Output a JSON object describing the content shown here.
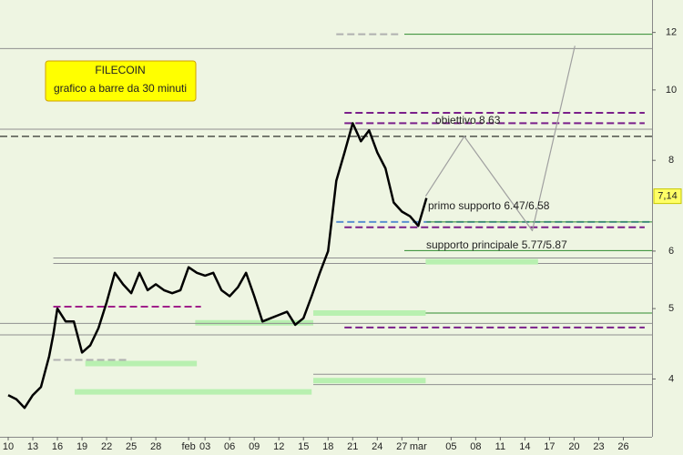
{
  "chart_data": {
    "type": "line",
    "title": "FILECOIN",
    "subtitle": "grafico a barre da 30 minuti",
    "log_y": true,
    "ylim": [
      3.33,
      13.3
    ],
    "yticks": [
      4,
      5,
      6,
      8,
      10,
      12
    ],
    "xlim": [
      -1,
      78.5
    ],
    "xticks": [
      {
        "value": 0,
        "label": "10"
      },
      {
        "value": 3,
        "label": "13"
      },
      {
        "value": 6,
        "label": "16"
      },
      {
        "value": 9,
        "label": "19"
      },
      {
        "value": 12,
        "label": "22"
      },
      {
        "value": 15,
        "label": "25"
      },
      {
        "value": 18,
        "label": "28"
      },
      {
        "value": 22,
        "label": "feb"
      },
      {
        "value": 24,
        "label": "03"
      },
      {
        "value": 27,
        "label": "06"
      },
      {
        "value": 30,
        "label": "09"
      },
      {
        "value": 33,
        "label": "12"
      },
      {
        "value": 36,
        "label": "15"
      },
      {
        "value": 39,
        "label": "18"
      },
      {
        "value": 42,
        "label": "21"
      },
      {
        "value": 45,
        "label": "24"
      },
      {
        "value": 48,
        "label": "27"
      },
      {
        "value": 50,
        "label": "mar"
      },
      {
        "value": 54,
        "label": "05"
      },
      {
        "value": 57,
        "label": "08"
      },
      {
        "value": 60,
        "label": "11"
      },
      {
        "value": 63,
        "label": "14"
      },
      {
        "value": 66,
        "label": "17"
      },
      {
        "value": 69,
        "label": "20"
      },
      {
        "value": 72,
        "label": "23"
      },
      {
        "value": 75,
        "label": "26"
      }
    ],
    "series": [
      {
        "color": "#000000",
        "x": [
          0,
          1,
          2,
          3,
          4,
          5,
          5.5,
          6,
          7,
          8,
          9,
          10,
          11,
          12,
          13,
          14,
          15,
          16,
          17,
          18,
          19,
          20,
          21,
          22,
          23,
          24,
          25,
          26,
          27,
          28,
          29,
          30,
          31,
          32,
          33,
          34,
          35,
          36,
          37,
          38,
          39,
          40,
          41,
          42,
          43,
          44,
          45,
          46,
          47,
          48,
          49,
          50,
          51
        ],
        "values": [
          3.8,
          3.75,
          3.65,
          3.8,
          3.9,
          4.3,
          4.6,
          5.0,
          4.8,
          4.8,
          4.35,
          4.45,
          4.7,
          5.1,
          5.6,
          5.4,
          5.25,
          5.6,
          5.3,
          5.4,
          5.3,
          5.25,
          5.3,
          5.7,
          5.6,
          5.55,
          5.6,
          5.3,
          5.2,
          5.35,
          5.6,
          5.2,
          4.8,
          4.85,
          4.9,
          4.95,
          4.75,
          4.85,
          5.2,
          5.6,
          6.0,
          7.5,
          8.2,
          9.0,
          8.5,
          8.8,
          8.2,
          7.8,
          7.0,
          6.8,
          6.7,
          6.5,
          7.1
        ]
      },
      {
        "color": "#a0a0a0",
        "x": [
          50.9,
          55.6,
          63.9,
          69.1
        ],
        "values": [
          7.14,
          8.63,
          6.4,
          11.5
        ]
      }
    ],
    "last": {
      "value": 7.14,
      "label": "7,14"
    },
    "levels": [
      {
        "value": 11.4,
        "from": -1,
        "to": 78.5,
        "color": "#909090",
        "style": "solid"
      },
      {
        "value": 11.93,
        "from": 48.3,
        "to": 78.5,
        "color": "#2e8b2e",
        "style": "solid"
      },
      {
        "value": 11.93,
        "from": 40,
        "to": 47.8,
        "color": "#b0b0b0",
        "style": "dashed"
      },
      {
        "value": 9.3,
        "from": 41,
        "to": 77.6,
        "color": "#7a1f8a",
        "style": "dashed"
      },
      {
        "value": 9.0,
        "from": 41,
        "to": 77.6,
        "color": "#7a1f8a",
        "style": "dashed"
      },
      {
        "value": 8.83,
        "from": -1,
        "to": 78.5,
        "color": "#909090",
        "style": "solid"
      },
      {
        "value": 8.63,
        "from": -1,
        "to": 78.5,
        "color": "#000000",
        "style": "dashed"
      },
      {
        "value": 6.58,
        "from": 40,
        "to": 78.5,
        "color": "#5a8fd0",
        "style": "dashed"
      },
      {
        "value": 6.58,
        "from": 51,
        "to": 78.5,
        "color": "#2e8b2e",
        "style": "solid"
      },
      {
        "value": 6.47,
        "from": 41,
        "to": 77.6,
        "color": "#7a1f8a",
        "style": "dashed"
      },
      {
        "value": 6.01,
        "from": 48.3,
        "to": 78.5,
        "color": "#2e8b2e",
        "style": "solid"
      },
      {
        "value": 5.87,
        "from": 5.5,
        "to": 78.5,
        "color": "#909090",
        "style": "solid"
      },
      {
        "value": 5.77,
        "from": 5.5,
        "to": 78.5,
        "color": "#909090",
        "style": "solid"
      },
      {
        "value": 5.8,
        "from": 50.9,
        "to": 64.6,
        "color": "#b8f0b0",
        "style": "band"
      },
      {
        "value": 5.03,
        "from": 5.5,
        "to": 23.5,
        "color": "#a0208a",
        "style": "dashed"
      },
      {
        "value": 4.93,
        "from": 48.3,
        "to": 78.5,
        "color": "#2e8b2e",
        "style": "solid"
      },
      {
        "value": 4.93,
        "from": 37.2,
        "to": 50.9,
        "color": "#b8f0b0",
        "style": "band"
      },
      {
        "value": 4.78,
        "from": 22.8,
        "to": 37.2,
        "color": "#b8f0b0",
        "style": "band"
      },
      {
        "value": 4.77,
        "from": -1,
        "to": 78.5,
        "color": "#909090",
        "style": "solid"
      },
      {
        "value": 4.71,
        "from": 41,
        "to": 77.6,
        "color": "#7a1f8a",
        "style": "dashed"
      },
      {
        "value": 4.6,
        "from": -1,
        "to": 78.5,
        "color": "#909090",
        "style": "solid"
      },
      {
        "value": 4.25,
        "from": 5.5,
        "to": 14.5,
        "color": "#b0b0b0",
        "style": "dashed"
      },
      {
        "value": 4.2,
        "from": 9.4,
        "to": 23,
        "color": "#b8f0b0",
        "style": "band"
      },
      {
        "value": 4.06,
        "from": 37.2,
        "to": 78.5,
        "color": "#909090",
        "style": "solid"
      },
      {
        "value": 3.98,
        "from": 37.2,
        "to": 50.9,
        "color": "#b8f0b0",
        "style": "band"
      },
      {
        "value": 3.93,
        "from": 37.2,
        "to": 78.5,
        "color": "#909090",
        "style": "solid"
      },
      {
        "value": 3.84,
        "from": 8.1,
        "to": 37,
        "color": "#b8f0b0",
        "style": "band"
      }
    ],
    "annotations": [
      "obiettivo 8.63",
      "primo supporto 6.47/6.58",
      "supporto principale 5.77/5.87"
    ]
  }
}
